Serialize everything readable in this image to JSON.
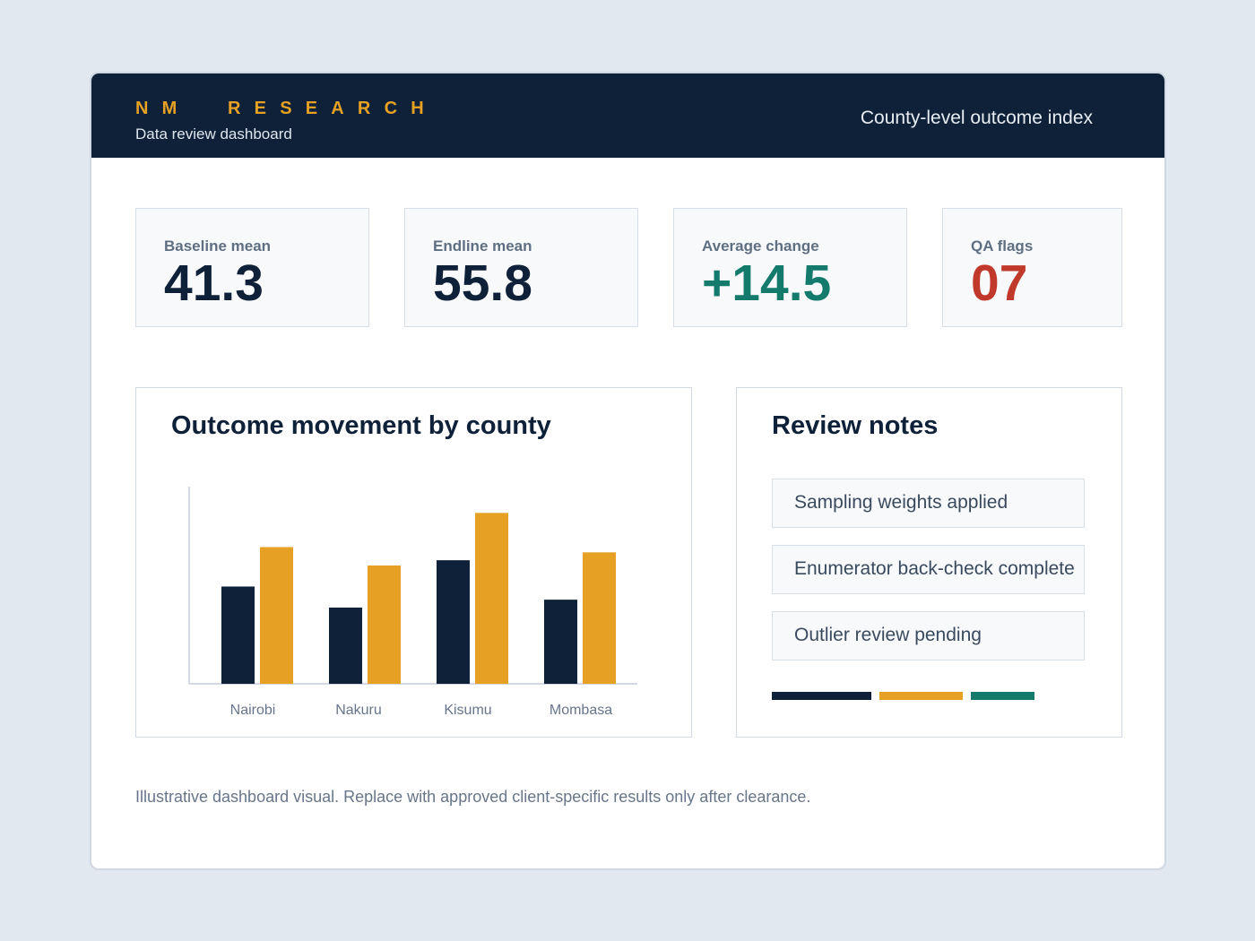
{
  "header": {
    "brand": "NM  RESEARCH",
    "subtitle": "Data review dashboard",
    "right_title": "County-level outcome index"
  },
  "stats": [
    {
      "label": "Baseline mean",
      "value": "41.3",
      "color": "#0f2138"
    },
    {
      "label": "Endline mean",
      "value": "55.8",
      "color": "#0f2138"
    },
    {
      "label": "Average change",
      "value": "+14.5",
      "color": "#137a6c"
    },
    {
      "label": "QA flags",
      "value": "07",
      "color": "#c0392b"
    }
  ],
  "chart_panel": {
    "title": "Outcome movement by county"
  },
  "chart_data": {
    "type": "bar",
    "title": "Outcome movement by county",
    "categories": [
      "Nairobi",
      "Nakuru",
      "Kisumu",
      "Mombasa"
    ],
    "series": [
      {
        "values": [
          37,
          29,
          47,
          32
        ],
        "color": "#0f2138"
      },
      {
        "values": [
          52,
          45,
          65,
          50
        ],
        "color": "#e6a023"
      }
    ],
    "ylim": [
      0,
      75
    ],
    "grid": false,
    "legend": "none"
  },
  "notes_panel": {
    "title": "Review notes",
    "items": [
      "Sampling weights applied",
      "Enumerator back-check complete",
      "Outlier review pending"
    ],
    "swatches": [
      "#0f2138",
      "#e6a023",
      "#137a6c"
    ]
  },
  "footnote": "Illustrative dashboard visual. Replace with approved client-specific results only after clearance."
}
